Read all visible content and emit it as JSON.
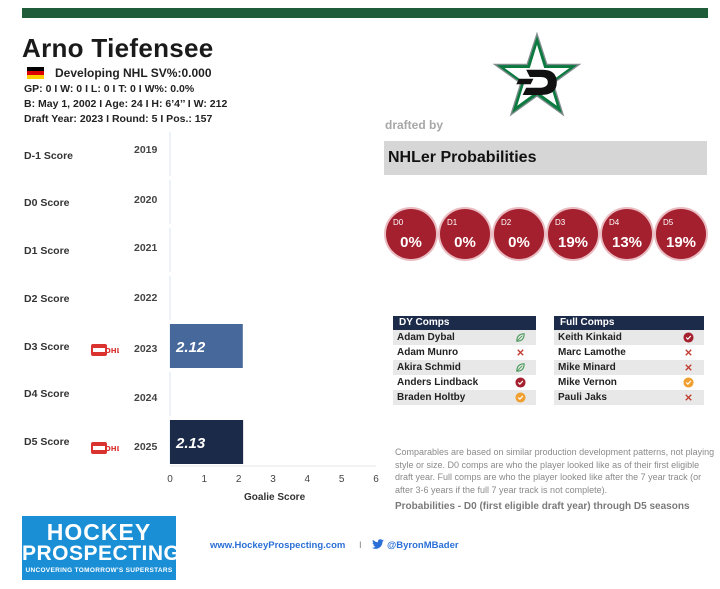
{
  "player": {
    "name": "Arno Tiefensee",
    "status": "Developing  NHL SV%:0.000",
    "stats_line": "GP: 0 I W: 0 I L: 0  I T: 0  I W%: 0.0%",
    "bio_line": "B: May 1, 2002 I  Age: 24 I H: 6’4’’ I W: 212",
    "draft_line": "Draft Year: 2023 I Round: 5 I Pos.: 157"
  },
  "drafted_by_label": "drafted by",
  "probabilities": {
    "title": "NHLer Probabilities",
    "items": [
      {
        "label": "D0",
        "value": "0%"
      },
      {
        "label": "D1",
        "value": "0%"
      },
      {
        "label": "D2",
        "value": "0%"
      },
      {
        "label": "D3",
        "value": "19%"
      },
      {
        "label": "D4",
        "value": "13%"
      },
      {
        "label": "D5",
        "value": "19%"
      }
    ],
    "circle_color": "#a5202e"
  },
  "dy_comps": {
    "title": "DY Comps",
    "rows": [
      {
        "name": "Adam Dybal",
        "icon": "leaf-icon"
      },
      {
        "name": "Adam Munro",
        "icon": "x-mark-icon"
      },
      {
        "name": "Akira Schmid",
        "icon": "leaf-icon"
      },
      {
        "name": "Anders Lindback",
        "icon": "check-red-icon"
      },
      {
        "name": "Braden Holtby",
        "icon": "check-orange-icon"
      }
    ]
  },
  "full_comps": {
    "title": "Full Comps",
    "rows": [
      {
        "name": "Keith Kinkaid",
        "icon": "check-red-icon"
      },
      {
        "name": "Marc Lamothe",
        "icon": "x-mark-icon"
      },
      {
        "name": "Mike Minard",
        "icon": "x-mark-icon"
      },
      {
        "name": "Mike Vernon",
        "icon": "check-orange-icon"
      },
      {
        "name": "Pauli Jaks",
        "icon": "x-mark-icon"
      }
    ]
  },
  "notes": "Comparables are based on similar production development patterns, not playing style or size. D0 comps are who the player looked like as of their first eligible draft year. Full comps are who the player looked like after the 7 year track (or after 3-6 years if the full 7 year track is not complete).",
  "prob_footnote": "Probabilities - D0 (first eligible draft year) through D5 seasons",
  "branding": {
    "line1": "HOCKEY",
    "line2": "PROSPECTING",
    "tagline": "UNCOVERING TOMORROW'S SUPERSTARS",
    "website": "www.HockeyProspecting.com",
    "separator": "I",
    "twitter": "@ByronMBader"
  },
  "colors": {
    "top_bar": "#1f5c3a",
    "bar_d3": "#46689a",
    "bar_d5": "#1b2a49",
    "comp_header": "#1d2b4a",
    "brand_blue": "#1a8fd6",
    "link_blue": "#2a6fd6"
  },
  "chart_data": {
    "type": "bar",
    "orientation": "horizontal",
    "categories": [
      "D-1 Score",
      "D0 Score",
      "D1 Score",
      "D2  Score",
      "D3 Score",
      "D4 Score",
      "D5 Score"
    ],
    "years": [
      "2019",
      "2020",
      "2021",
      "2022",
      "2023",
      "2024",
      "2025"
    ],
    "values": [
      null,
      null,
      null,
      null,
      2.12,
      null,
      2.13
    ],
    "value_labels": [
      "",
      "",
      "",
      "",
      "2.12",
      "",
      "2.13"
    ],
    "league_badges": [
      "",
      "",
      "",
      "",
      "OHL",
      "",
      "OHL"
    ],
    "xlabel": "Goalie Score",
    "xticks": [
      "0",
      "1",
      "2",
      "3",
      "4",
      "5",
      "6"
    ],
    "xlim": [
      0,
      6
    ]
  }
}
